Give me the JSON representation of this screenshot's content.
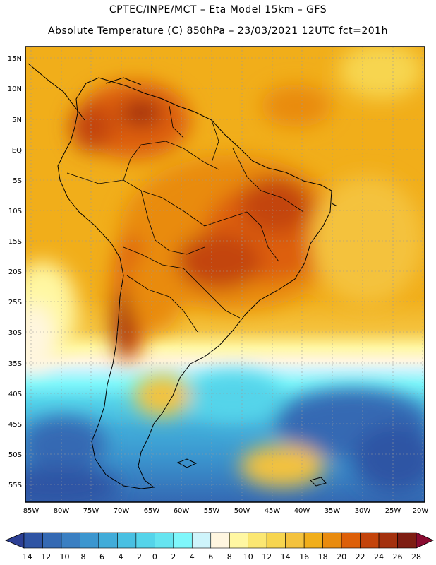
{
  "header": {
    "line1": "CPTEC/INPE/MCT –   Eta Model 15km – GFS",
    "line2": "Absolute Temperature (C) 850hPa – 23/03/2021 12UTC fct=201h"
  },
  "map": {
    "lat_labels": [
      "15N",
      "10N",
      "5N",
      "EQ",
      "5S",
      "10S",
      "15S",
      "20S",
      "25S",
      "30S",
      "35S",
      "40S",
      "45S",
      "50S",
      "55S"
    ],
    "lon_labels": [
      "85W",
      "80W",
      "75W",
      "70W",
      "65W",
      "60W",
      "55W",
      "50W",
      "45W",
      "40W",
      "35W",
      "30W",
      "25W",
      "20W"
    ]
  },
  "colorbar": {
    "labels": [
      "-14",
      "-12",
      "-10",
      "-8",
      "-6",
      "-4",
      "-2",
      "0",
      "2",
      "4",
      "6",
      "8",
      "10",
      "12",
      "14",
      "16",
      "18",
      "20",
      "22",
      "24",
      "26",
      "28"
    ],
    "colors": [
      "#2c3f94",
      "#2f54a4",
      "#3469b3",
      "#3a7fc2",
      "#3b96cf",
      "#41acd9",
      "#49c0e2",
      "#55d4ea",
      "#66e4f0",
      "#7ff7fb",
      "#cef4fb",
      "#fff6e0",
      "#fff7a2",
      "#fbe772",
      "#f7d54f",
      "#f4c23d",
      "#f1ae1a",
      "#e98b0e",
      "#dd5f08",
      "#c3440b",
      "#a4310e",
      "#7e1d12",
      "#8a0b30"
    ]
  }
}
